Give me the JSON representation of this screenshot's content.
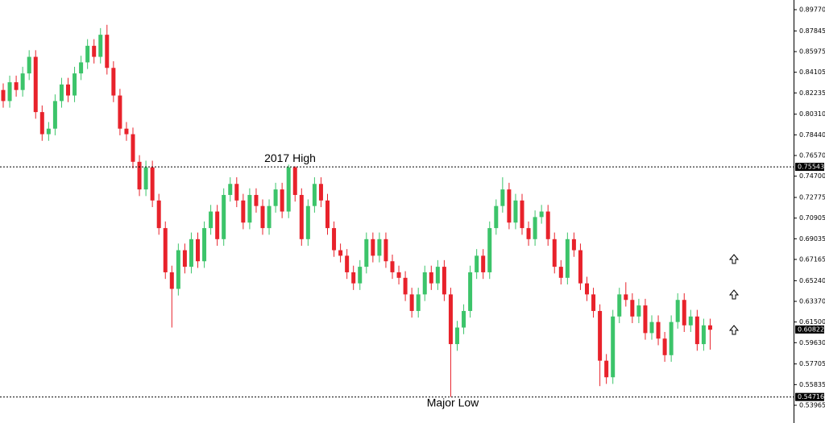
{
  "chart_data": {
    "type": "candlestick",
    "ylim": [
      0.5236,
      0.90645
    ],
    "yticks": [
      {
        "value": 0.8977,
        "label": "0.89770"
      },
      {
        "value": 0.87845,
        "label": "0.87845"
      },
      {
        "value": 0.85975,
        "label": "0.85975"
      },
      {
        "value": 0.84105,
        "label": "0.84105"
      },
      {
        "value": 0.82235,
        "label": "0.82235"
      },
      {
        "value": 0.8031,
        "label": "0.80310"
      },
      {
        "value": 0.7844,
        "label": "0.78440"
      },
      {
        "value": 0.7657,
        "label": "0.76570"
      },
      {
        "value": 0.747,
        "label": "0.74700"
      },
      {
        "value": 0.72775,
        "label": "0.72775"
      },
      {
        "value": 0.70905,
        "label": "0.70905"
      },
      {
        "value": 0.69035,
        "label": "0.69035"
      },
      {
        "value": 0.67165,
        "label": "0.67165"
      },
      {
        "value": 0.6524,
        "label": "0.65240"
      },
      {
        "value": 0.6337,
        "label": "0.63370"
      },
      {
        "value": 0.615,
        "label": "0.61500"
      },
      {
        "value": 0.5963,
        "label": "0.59630"
      },
      {
        "value": 0.57705,
        "label": "0.57705"
      },
      {
        "value": 0.55835,
        "label": "0.55835"
      },
      {
        "value": 0.53965,
        "label": "0.53965"
      }
    ],
    "up_color": "#3cc46a",
    "down_color": "#e8222b",
    "open": [
      0.825,
      0.815,
      0.832,
      0.825,
      0.84,
      0.855,
      0.805,
      0.785,
      0.79,
      0.815,
      0.83,
      0.82,
      0.84,
      0.85,
      0.865,
      0.855,
      0.875,
      0.845,
      0.82,
      0.79,
      0.785,
      0.76,
      0.735,
      0.755,
      0.725,
      0.7,
      0.66,
      0.645,
      0.68,
      0.665,
      0.69,
      0.67,
      0.7,
      0.715,
      0.69,
      0.73,
      0.74,
      0.725,
      0.705,
      0.73,
      0.72,
      0.7,
      0.72,
      0.735,
      0.715,
      0.755,
      0.73,
      0.69,
      0.72,
      0.74,
      0.725,
      0.7,
      0.68,
      0.675,
      0.66,
      0.65,
      0.665,
      0.69,
      0.675,
      0.69,
      0.67,
      0.66,
      0.655,
      0.64,
      0.625,
      0.64,
      0.66,
      0.65,
      0.665,
      0.64,
      0.595,
      0.61,
      0.625,
      0.66,
      0.675,
      0.66,
      0.7,
      0.72,
      0.735,
      0.705,
      0.725,
      0.7,
      0.69,
      0.71,
      0.715,
      0.69,
      0.665,
      0.655,
      0.69,
      0.68,
      0.65,
      0.64,
      0.625,
      0.58,
      0.565,
      0.62,
      0.64,
      0.635,
      0.62,
      0.63,
      0.605,
      0.615,
      0.6,
      0.585,
      0.615,
      0.635,
      0.612,
      0.62,
      0.595,
      0.612
    ],
    "high": [
      0.831,
      0.838,
      0.838,
      0.846,
      0.861,
      0.861,
      0.811,
      0.796,
      0.821,
      0.836,
      0.836,
      0.846,
      0.856,
      0.871,
      0.871,
      0.881,
      0.884,
      0.851,
      0.826,
      0.796,
      0.791,
      0.766,
      0.761,
      0.761,
      0.731,
      0.706,
      0.666,
      0.686,
      0.686,
      0.696,
      0.696,
      0.706,
      0.721,
      0.721,
      0.736,
      0.746,
      0.746,
      0.731,
      0.736,
      0.736,
      0.726,
      0.726,
      0.741,
      0.741,
      0.7575,
      0.756,
      0.736,
      0.726,
      0.746,
      0.746,
      0.731,
      0.706,
      0.686,
      0.681,
      0.666,
      0.671,
      0.696,
      0.696,
      0.696,
      0.696,
      0.676,
      0.666,
      0.661,
      0.646,
      0.646,
      0.666,
      0.666,
      0.671,
      0.671,
      0.646,
      0.616,
      0.631,
      0.666,
      0.681,
      0.681,
      0.706,
      0.726,
      0.746,
      0.741,
      0.731,
      0.731,
      0.706,
      0.716,
      0.721,
      0.721,
      0.696,
      0.671,
      0.696,
      0.696,
      0.686,
      0.656,
      0.646,
      0.631,
      0.586,
      0.626,
      0.646,
      0.651,
      0.641,
      0.636,
      0.636,
      0.621,
      0.621,
      0.606,
      0.621,
      0.641,
      0.641,
      0.626,
      0.626,
      0.618,
      0.618
    ],
    "low": [
      0.809,
      0.809,
      0.819,
      0.819,
      0.834,
      0.799,
      0.779,
      0.779,
      0.784,
      0.809,
      0.814,
      0.814,
      0.834,
      0.844,
      0.849,
      0.849,
      0.839,
      0.814,
      0.784,
      0.779,
      0.754,
      0.729,
      0.729,
      0.719,
      0.694,
      0.654,
      0.61,
      0.639,
      0.659,
      0.659,
      0.664,
      0.664,
      0.694,
      0.684,
      0.684,
      0.724,
      0.719,
      0.699,
      0.699,
      0.714,
      0.694,
      0.694,
      0.714,
      0.709,
      0.709,
      0.724,
      0.684,
      0.684,
      0.714,
      0.719,
      0.694,
      0.674,
      0.669,
      0.654,
      0.644,
      0.644,
      0.659,
      0.669,
      0.669,
      0.664,
      0.654,
      0.649,
      0.634,
      0.619,
      0.619,
      0.634,
      0.644,
      0.644,
      0.634,
      0.5472,
      0.589,
      0.604,
      0.619,
      0.654,
      0.654,
      0.654,
      0.694,
      0.714,
      0.699,
      0.699,
      0.694,
      0.684,
      0.684,
      0.704,
      0.684,
      0.659,
      0.649,
      0.649,
      0.674,
      0.644,
      0.634,
      0.619,
      0.557,
      0.559,
      0.559,
      0.614,
      0.629,
      0.614,
      0.614,
      0.599,
      0.599,
      0.594,
      0.579,
      0.579,
      0.609,
      0.606,
      0.606,
      0.589,
      0.589,
      0.59
    ],
    "close": [
      0.815,
      0.832,
      0.825,
      0.84,
      0.855,
      0.805,
      0.785,
      0.79,
      0.815,
      0.83,
      0.82,
      0.84,
      0.85,
      0.865,
      0.855,
      0.875,
      0.845,
      0.82,
      0.79,
      0.785,
      0.76,
      0.735,
      0.755,
      0.725,
      0.7,
      0.66,
      0.645,
      0.68,
      0.665,
      0.69,
      0.67,
      0.7,
      0.715,
      0.69,
      0.73,
      0.74,
      0.725,
      0.705,
      0.73,
      0.72,
      0.7,
      0.72,
      0.735,
      0.715,
      0.755,
      0.73,
      0.69,
      0.72,
      0.74,
      0.725,
      0.7,
      0.68,
      0.675,
      0.66,
      0.65,
      0.665,
      0.69,
      0.675,
      0.69,
      0.67,
      0.66,
      0.655,
      0.64,
      0.625,
      0.64,
      0.66,
      0.65,
      0.665,
      0.64,
      0.595,
      0.61,
      0.625,
      0.66,
      0.675,
      0.66,
      0.7,
      0.72,
      0.735,
      0.705,
      0.725,
      0.7,
      0.69,
      0.71,
      0.715,
      0.69,
      0.665,
      0.655,
      0.69,
      0.68,
      0.65,
      0.64,
      0.625,
      0.58,
      0.565,
      0.62,
      0.64,
      0.635,
      0.62,
      0.63,
      0.605,
      0.615,
      0.6,
      0.585,
      0.615,
      0.635,
      0.612,
      0.62,
      0.595,
      0.612,
      0.608
    ],
    "annotations": [
      {
        "text": "2017 High",
        "value": 0.75543,
        "label": "0.75543"
      },
      {
        "text": "Major Low",
        "value": 0.54716,
        "label": "0.54716"
      }
    ],
    "last_price": {
      "value": 0.60822,
      "label": "0.60822"
    }
  }
}
